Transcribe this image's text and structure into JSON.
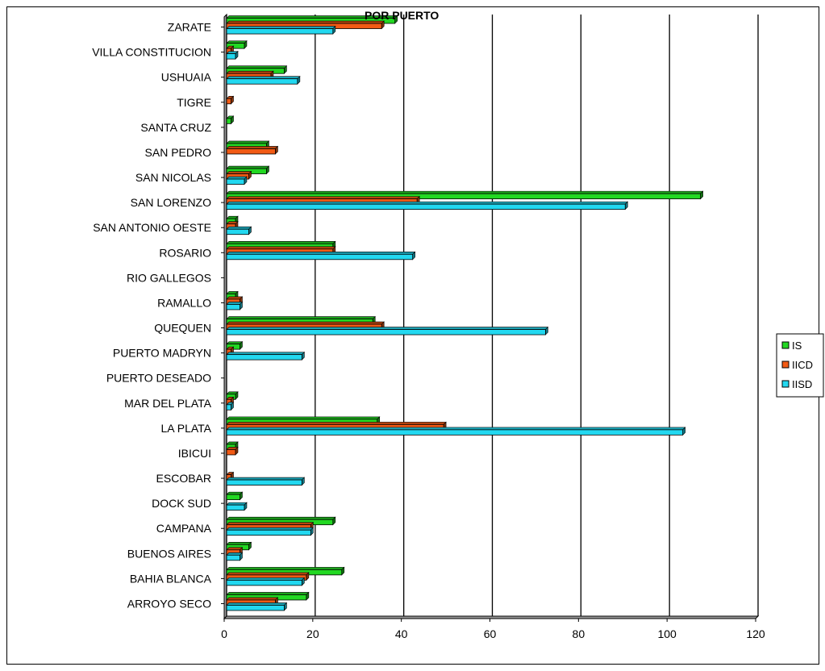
{
  "chart_data": {
    "type": "bar",
    "orientation": "horizontal",
    "title": "POR PUERTO",
    "xlabel": "",
    "ylabel": "",
    "xlim": [
      0,
      120
    ],
    "x_ticks": [
      0,
      20,
      40,
      60,
      80,
      100,
      120
    ],
    "grid": "vertical",
    "legend_position": "right",
    "categories": [
      "ZARATE",
      "VILLA CONSTITUCION",
      "USHUAIA",
      "TIGRE",
      "SANTA CRUZ",
      "SAN PEDRO",
      "SAN NICOLAS",
      "SAN LORENZO",
      "SAN ANTONIO OESTE",
      "ROSARIO",
      "RIO GALLEGOS",
      "RAMALLO",
      "QUEQUEN",
      "PUERTO MADRYN",
      "PUERTO DESEADO",
      "MAR DEL PLATA",
      "LA PLATA",
      "IBICUI",
      "ESCOBAR",
      "DOCK SUD",
      "CAMPANA",
      "BUENOS AIRES",
      "BAHIA BLANCA",
      "ARROYO SECO"
    ],
    "series": [
      {
        "name": "IS",
        "color": "#22d822",
        "values": [
          38,
          4,
          13,
          0,
          1,
          9,
          9,
          107,
          2,
          24,
          0,
          2,
          33,
          3,
          0,
          2,
          34,
          2,
          0,
          3,
          24,
          5,
          26,
          18
        ]
      },
      {
        "name": "IICD",
        "color": "#f25a14",
        "values": [
          35,
          1,
          10,
          1,
          0,
          11,
          5,
          43,
          2,
          24,
          0,
          3,
          35,
          1,
          0,
          1,
          49,
          2,
          1,
          0,
          19,
          3,
          18,
          11
        ]
      },
      {
        "name": "IISD",
        "color": "#22d8f0",
        "values": [
          24,
          2,
          16,
          0,
          0,
          0,
          4,
          90,
          5,
          42,
          0,
          3,
          72,
          17,
          0,
          1,
          103,
          0,
          17,
          4,
          19,
          3,
          17,
          13
        ]
      }
    ]
  }
}
